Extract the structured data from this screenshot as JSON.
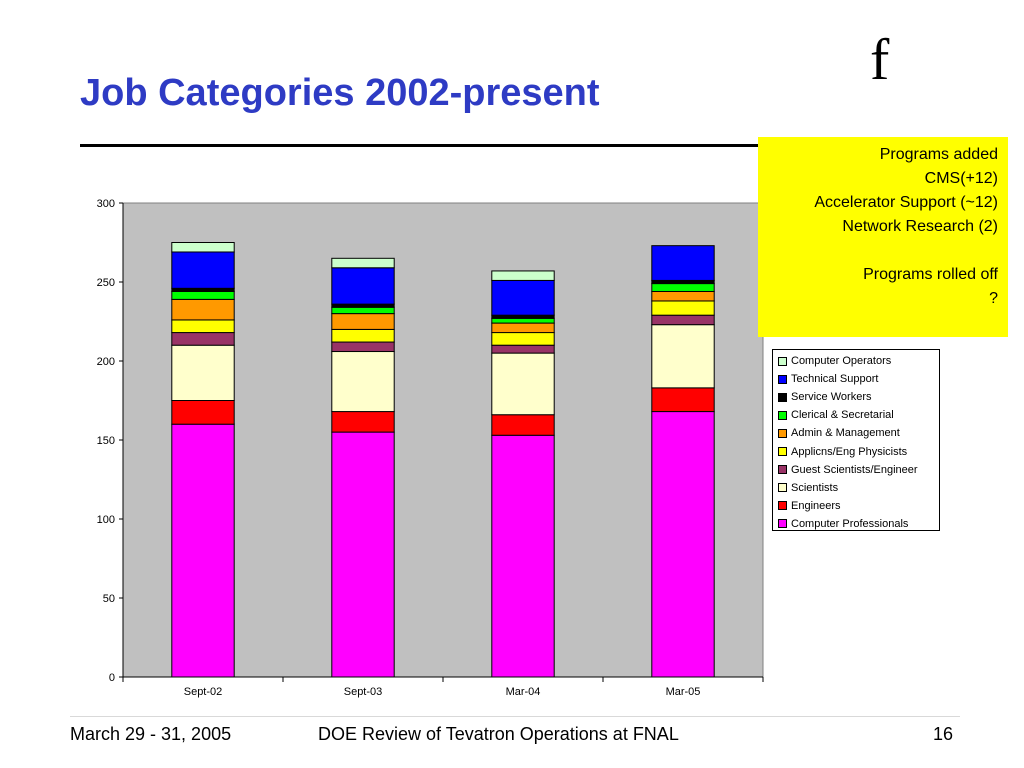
{
  "slide": {
    "title": "Job Categories 2002-present",
    "logo_text": "f",
    "note_lines": [
      "Programs added",
      "CMS(+12)",
      "Accelerator Support (~12)",
      "Network Research (2)",
      "",
      "Programs rolled off",
      "?"
    ],
    "footer_left": "March 29 - 31, 2005",
    "footer_center": "DOE Review of Tevatron Operations at FNAL",
    "footer_right": "16"
  },
  "chart_data": {
    "type": "bar",
    "stacked": true,
    "categories": [
      "Sept-02",
      "Sept-03",
      "Mar-04",
      "Mar-05"
    ],
    "ylim": [
      0,
      300
    ],
    "yticks": [
      0,
      50,
      100,
      150,
      200,
      250,
      300
    ],
    "grid": false,
    "plot_background": "#c0c0c0",
    "legend_position": "right",
    "series": [
      {
        "name": "Computer Professionals",
        "color": "#ff00ff",
        "values": [
          160,
          155,
          153,
          168
        ]
      },
      {
        "name": "Engineers",
        "color": "#ff0000",
        "values": [
          15,
          13,
          13,
          15
        ]
      },
      {
        "name": "Scientists",
        "color": "#ffffcc",
        "values": [
          35,
          38,
          39,
          40
        ]
      },
      {
        "name": "Guest Scientists/Engineer",
        "color": "#993366",
        "values": [
          8,
          6,
          5,
          6
        ]
      },
      {
        "name": "Applicns/Eng Physicists",
        "color": "#ffff00",
        "values": [
          8,
          8,
          8,
          9
        ]
      },
      {
        "name": "Admin & Management",
        "color": "#ff9900",
        "values": [
          13,
          10,
          6,
          6
        ]
      },
      {
        "name": "Clerical & Secretarial",
        "color": "#00ff00",
        "values": [
          5,
          4,
          3,
          5
        ]
      },
      {
        "name": "Service Workers",
        "color": "#000000",
        "values": [
          2,
          2,
          2,
          2
        ]
      },
      {
        "name": "Technical Support",
        "color": "#0000ff",
        "values": [
          23,
          23,
          22,
          22
        ]
      },
      {
        "name": "Computer Operators",
        "color": "#ccffcc",
        "values": [
          6,
          6,
          6,
          0
        ]
      }
    ]
  }
}
